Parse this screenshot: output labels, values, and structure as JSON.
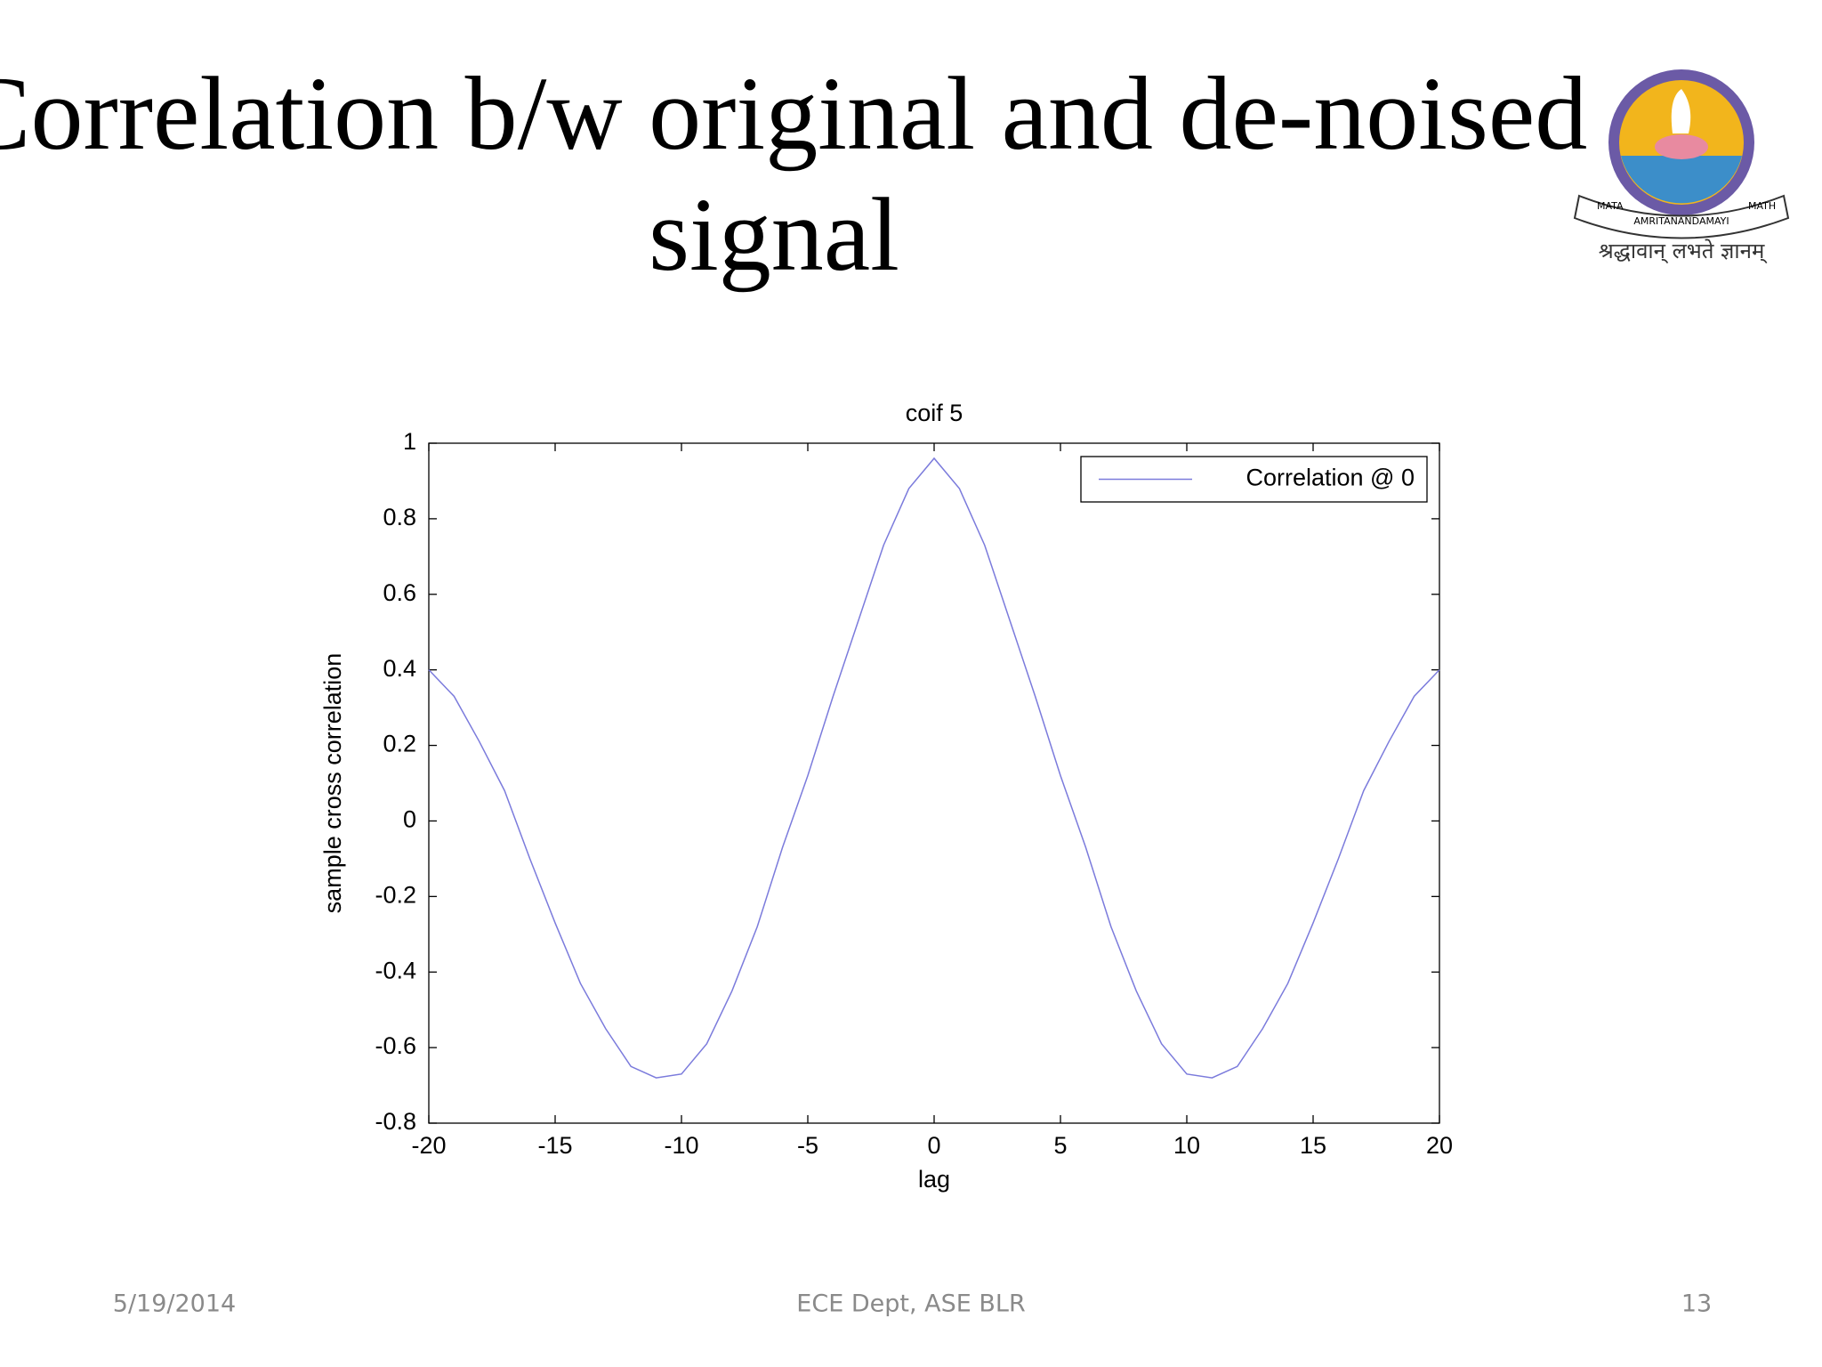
{
  "slide": {
    "title": [
      "Correlation b/w original and de-noised",
      "signal"
    ],
    "logo": {
      "banner": [
        "MATA",
        "AMRITANANDAMAYI",
        "MATH"
      ],
      "motto": "श्रद्धावान् लभते ज्ञानम्"
    },
    "footer": {
      "date": "5/19/2014",
      "center": "ECE Dept, ASE BLR",
      "page": 13
    }
  },
  "chart_data": {
    "type": "line",
    "title": "coif 5",
    "x_label": "lag",
    "y_label": "sample cross correlation",
    "x": [
      -20,
      -19,
      -18,
      -17,
      -16,
      -15,
      -14,
      -13,
      -12,
      -11,
      -10,
      -9,
      -8,
      -7,
      -6,
      -5,
      -4,
      -3,
      -2,
      -1,
      0,
      1,
      2,
      3,
      4,
      5,
      6,
      7,
      8,
      9,
      10,
      11,
      12,
      13,
      14,
      15,
      16,
      17,
      18,
      19,
      20
    ],
    "series": [
      {
        "name": "Correlation @ 0",
        "color": "#7b7bdc",
        "values": [
          0.4,
          0.33,
          0.21,
          0.08,
          -0.1,
          -0.27,
          -0.43,
          -0.55,
          -0.65,
          -0.68,
          -0.67,
          -0.59,
          -0.45,
          -0.28,
          -0.07,
          0.12,
          0.33,
          0.53,
          0.73,
          0.88,
          0.96,
          0.88,
          0.73,
          0.53,
          0.33,
          0.12,
          -0.07,
          -0.28,
          -0.45,
          -0.59,
          -0.67,
          -0.68,
          -0.65,
          -0.55,
          -0.43,
          -0.27,
          -0.1,
          0.08,
          0.21,
          0.33,
          0.4
        ]
      }
    ],
    "xlim": [
      -20,
      20
    ],
    "xticks": [
      -20,
      -15,
      -10,
      -5,
      0,
      5,
      10,
      15,
      20
    ],
    "ylim": [
      -0.8,
      1
    ],
    "yticks": [
      -0.8,
      -0.6,
      -0.4,
      -0.2,
      0,
      0.2,
      0.4,
      0.6,
      0.8,
      1
    ],
    "grid": false,
    "legend": "upper right"
  }
}
